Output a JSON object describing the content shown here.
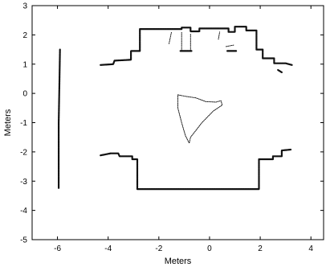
{
  "chart_data": {
    "type": "scatter",
    "title": "",
    "xlabel": "Meters",
    "ylabel": "Meters",
    "xlim": [
      -7,
      4.5
    ],
    "ylim": [
      -5,
      3
    ],
    "xticks": [
      -6,
      -4,
      -2,
      0,
      2,
      4
    ],
    "yticks": [
      -5,
      -4,
      -3,
      -2,
      -1,
      0,
      1,
      2,
      3
    ],
    "grid": false,
    "legend": "none",
    "point_color": "#111111",
    "series": [
      {
        "style": "thick",
        "points": [
          [
            -4.3,
            0.97
          ],
          [
            -3.8,
            1.0
          ],
          [
            -3.75,
            1.12
          ],
          [
            -3.1,
            1.15
          ],
          [
            -3.1,
            1.45
          ],
          [
            -2.75,
            1.45
          ],
          [
            -2.75,
            2.2
          ],
          [
            -1.1,
            2.2
          ],
          [
            -1.1,
            2.25
          ],
          [
            -0.75,
            2.25
          ],
          [
            -0.75,
            2.12
          ],
          [
            -0.4,
            2.12
          ],
          [
            -0.4,
            2.22
          ],
          [
            0.75,
            2.22
          ],
          [
            0.75,
            2.1
          ],
          [
            1.0,
            2.1
          ],
          [
            1.0,
            2.28
          ],
          [
            1.45,
            2.28
          ],
          [
            1.45,
            2.15
          ],
          [
            1.85,
            2.15
          ],
          [
            1.85,
            1.5
          ],
          [
            2.1,
            1.5
          ],
          [
            2.1,
            1.2
          ],
          [
            2.55,
            1.2
          ],
          [
            2.55,
            1.03
          ],
          [
            3.0,
            1.03
          ],
          [
            3.25,
            0.97
          ]
        ]
      },
      {
        "style": "thick",
        "points": [
          [
            -4.3,
            -2.12
          ],
          [
            -3.9,
            -2.05
          ],
          [
            -3.6,
            -2.05
          ],
          [
            -3.55,
            -2.15
          ],
          [
            -3.05,
            -2.15
          ],
          [
            -3.05,
            -2.25
          ],
          [
            -2.85,
            -2.25
          ],
          [
            -2.85,
            -3.27
          ],
          [
            1.95,
            -3.27
          ],
          [
            1.95,
            -2.25
          ],
          [
            2.5,
            -2.25
          ],
          [
            2.5,
            -2.15
          ],
          [
            2.85,
            -2.15
          ],
          [
            2.85,
            -1.95
          ],
          [
            3.2,
            -1.92
          ]
        ]
      },
      {
        "style": "thick",
        "points": [
          [
            -5.9,
            1.5
          ],
          [
            -5.92,
            0.5
          ],
          [
            -5.95,
            -1.0
          ],
          [
            -5.95,
            -2.5
          ],
          [
            -5.95,
            -3.25
          ]
        ]
      },
      {
        "style": "thin",
        "points": [
          [
            -1.25,
            -0.05
          ],
          [
            -0.95,
            -0.1
          ],
          [
            -0.55,
            -0.15
          ],
          [
            -0.15,
            -0.28
          ],
          [
            0.25,
            -0.3
          ],
          [
            0.45,
            -0.25
          ],
          [
            0.5,
            -0.4
          ],
          [
            0.15,
            -0.6
          ],
          [
            -0.3,
            -1.0
          ],
          [
            -0.75,
            -1.5
          ],
          [
            -0.8,
            -1.7
          ],
          [
            -0.95,
            -1.45
          ],
          [
            -1.1,
            -1.0
          ],
          [
            -1.25,
            -0.5
          ],
          [
            -1.25,
            -0.05
          ]
        ]
      },
      {
        "style": "thin",
        "points": [
          [
            -1.1,
            1.45
          ],
          [
            -1.1,
            2.1
          ]
        ]
      },
      {
        "style": "thin",
        "points": [
          [
            -0.75,
            1.45
          ],
          [
            -0.75,
            2.05
          ]
        ]
      },
      {
        "style": "thin",
        "points": [
          [
            -1.6,
            1.7
          ],
          [
            -1.5,
            2.1
          ]
        ]
      },
      {
        "style": "thin",
        "points": [
          [
            0.35,
            1.85
          ],
          [
            0.4,
            2.1
          ]
        ]
      },
      {
        "style": "thin",
        "points": [
          [
            0.65,
            1.6
          ],
          [
            0.95,
            1.65
          ]
        ]
      },
      {
        "style": "thick",
        "points": [
          [
            -1.15,
            1.45
          ],
          [
            -0.7,
            1.45
          ]
        ]
      },
      {
        "style": "thick",
        "points": [
          [
            0.7,
            1.45
          ],
          [
            1.05,
            1.45
          ]
        ]
      },
      {
        "style": "thick",
        "points": [
          [
            2.7,
            0.8
          ],
          [
            2.85,
            0.72
          ]
        ]
      }
    ]
  }
}
